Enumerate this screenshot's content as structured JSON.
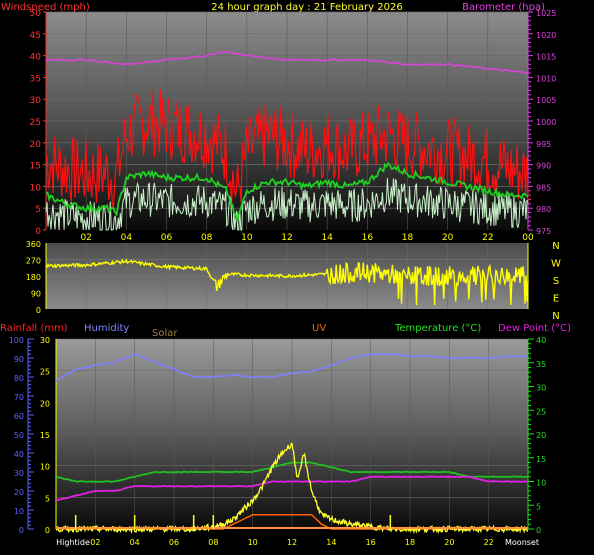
{
  "header": {
    "title": "24 hour graph day : 21 February 2026",
    "left_label": "Windspeed (mph)",
    "right_label": "Barometer (hpa)"
  },
  "colors": {
    "wind_gust": "#ff1010",
    "wind_avg": "#20d020",
    "wind_speed": "#c8f0c8",
    "barometer": "#e040e0",
    "direction": "#ffff00",
    "humidity": "#8080ff",
    "temperature": "#20c020",
    "dew_point": "#e020e0",
    "solar": "#ffff30",
    "uv": "#ff6000",
    "rainfall_label": "#ff2020",
    "uv_label": "#ff6000",
    "solar_label": "#a08040",
    "axis_left": "#ff3030",
    "axis_right": "#e040e0",
    "axis_green": "#20e020",
    "axis_blue": "#6060ff",
    "axis_yellow": "#ffff00"
  },
  "x_tick_labels": [
    "02",
    "04",
    "06",
    "08",
    "10",
    "12",
    "14",
    "16",
    "18",
    "20",
    "22",
    "00"
  ],
  "wind_panel": {
    "left_ticks": [
      "0",
      "5",
      "10",
      "15",
      "20",
      "25",
      "30",
      "35",
      "40",
      "45",
      "50"
    ],
    "right_ticks": [
      "975",
      "980",
      "985",
      "990",
      "995",
      "1000",
      "1005",
      "1010",
      "1015",
      "1020",
      "1025"
    ]
  },
  "direction_panel": {
    "left_ticks": [
      "0",
      "90",
      "180",
      "270",
      "360"
    ],
    "compass_labels": [
      "N",
      "W",
      "S",
      "E",
      "N"
    ]
  },
  "bottom_panel": {
    "legend": {
      "rainfall": "Rainfall (mm)",
      "humidity": "Humidity",
      "solar": "Solar",
      "uv": "UV",
      "temperature": "Temperature (°C)",
      "dew_point": "Dew Point (°C)"
    },
    "humidity_ticks": [
      "0",
      "10",
      "20",
      "30",
      "40",
      "50",
      "60",
      "70",
      "80",
      "90",
      "100"
    ],
    "rain_ticks": [
      "0",
      "5",
      "10",
      "15",
      "20",
      "25",
      "30"
    ],
    "temp_ticks": [
      "0",
      "5",
      "10",
      "15",
      "20",
      "25",
      "30",
      "35",
      "40"
    ],
    "x_labels": [
      "Hightide",
      "02",
      "04",
      "06",
      "08",
      "10",
      "12",
      "14",
      "16",
      "18",
      "20",
      "22",
      "Moonset"
    ]
  },
  "chart_data": [
    {
      "type": "line",
      "title": "24 hour graph day : 21 February 2026",
      "x_range_hours": [
        0,
        24
      ],
      "ylim_left": [
        0,
        50
      ],
      "ylim_right": [
        975,
        1025
      ],
      "series": [
        {
          "name": "Windspeed (mph)",
          "axis": "left",
          "hours": [
            0,
            1,
            2,
            3,
            3.5,
            4,
            5,
            6,
            7,
            8,
            9,
            9.5,
            10,
            11,
            12,
            13,
            14,
            15,
            16,
            17,
            18,
            19,
            20,
            21,
            22,
            23,
            24
          ],
          "values": [
            16,
            14,
            13,
            13,
            12,
            22,
            25,
            24,
            23,
            22,
            18,
            8,
            18,
            22,
            20,
            18,
            20,
            18,
            20,
            22,
            20,
            19,
            18,
            17,
            16,
            14,
            13
          ]
        },
        {
          "name": "wind average",
          "axis": "left",
          "hours": [
            0,
            1,
            2,
            3,
            3.5,
            4,
            5,
            6,
            7,
            8,
            9,
            9.5,
            10,
            11,
            12,
            13,
            14,
            15,
            16,
            17,
            18,
            19,
            20,
            21,
            22,
            23,
            24
          ],
          "values": [
            8,
            6,
            5,
            5,
            4,
            12,
            13,
            12,
            12,
            12,
            9,
            2,
            9,
            11,
            11,
            10,
            11,
            10,
            11,
            15,
            13,
            12,
            11,
            10,
            9,
            8,
            8
          ]
        },
        {
          "name": "Barometer (hpa)",
          "axis": "right",
          "hours": [
            0,
            2,
            4,
            6,
            8,
            9,
            10,
            12,
            14,
            16,
            18,
            20,
            22,
            24
          ],
          "values": [
            1014,
            1014,
            1013,
            1014,
            1015,
            1016,
            1015,
            1014,
            1014,
            1014,
            1013,
            1013,
            1012,
            1011
          ]
        }
      ]
    },
    {
      "type": "scatter",
      "title": "Wind direction",
      "ylim": [
        0,
        360
      ],
      "series": [
        {
          "name": "Direction",
          "hours": [
            0,
            2,
            4,
            6,
            8,
            8.5,
            9,
            10,
            12,
            14,
            16,
            18,
            20,
            22,
            24
          ],
          "values": [
            235,
            240,
            260,
            230,
            220,
            120,
            190,
            185,
            180,
            190,
            200,
            180,
            180,
            180,
            180
          ]
        }
      ]
    },
    {
      "type": "line",
      "title": "",
      "ylim_humidity": [
        0,
        100
      ],
      "ylim_rain": [
        0,
        30
      ],
      "ylim_temp": [
        0,
        40
      ],
      "series": [
        {
          "name": "Humidity",
          "axis": "humidity",
          "hours": [
            0,
            1,
            2,
            3,
            4,
            5,
            6,
            7,
            8,
            9,
            10,
            11,
            12,
            13,
            14,
            15,
            16,
            17,
            18,
            19,
            20,
            21,
            22,
            23,
            24
          ],
          "values": [
            78,
            84,
            86,
            88,
            92,
            88,
            84,
            80,
            80,
            81,
            80,
            80,
            82,
            83,
            86,
            90,
            92,
            92,
            91,
            91,
            90,
            90,
            90,
            91,
            91
          ]
        },
        {
          "name": "Temperature (°C)",
          "axis": "temp",
          "hours": [
            0,
            1,
            2,
            3,
            4,
            5,
            6,
            7,
            8,
            9,
            10,
            11,
            12,
            13,
            14,
            15,
            16,
            17,
            18,
            19,
            20,
            21,
            22,
            23,
            24
          ],
          "values": [
            11,
            10,
            10,
            10,
            11,
            12,
            12,
            12,
            12,
            12,
            12,
            13,
            14,
            14,
            13,
            12,
            12,
            12,
            12,
            12,
            12,
            11,
            11,
            11,
            11
          ]
        },
        {
          "name": "Dew Point (°C)",
          "axis": "temp",
          "hours": [
            0,
            1,
            2,
            3,
            4,
            5,
            6,
            7,
            8,
            9,
            10,
            11,
            12,
            13,
            14,
            15,
            16,
            17,
            18,
            19,
            20,
            21,
            22,
            23,
            24
          ],
          "values": [
            6,
            7,
            8,
            8,
            9,
            9,
            9,
            9,
            9,
            9,
            9,
            10,
            10,
            10,
            10,
            10,
            11,
            11,
            11,
            11,
            11,
            11,
            10,
            10,
            10
          ]
        },
        {
          "name": "Solar",
          "axis": "temp",
          "hours": [
            0,
            6,
            7,
            8,
            8.5,
            9,
            9.5,
            10,
            10.5,
            11,
            11.5,
            12,
            12.3,
            12.6,
            13,
            13.5,
            14,
            15,
            16,
            17,
            24
          ],
          "values": [
            0,
            0,
            0,
            0.5,
            1,
            2,
            4,
            6,
            9,
            13,
            16,
            18,
            10,
            16,
            8,
            3,
            2,
            1,
            0.5,
            0,
            0
          ]
        },
        {
          "name": "UV",
          "axis": "temp",
          "hours": [
            0,
            8.5,
            9,
            10,
            11,
            12,
            13,
            13.5,
            14,
            24
          ],
          "values": [
            0,
            0,
            1,
            3,
            3,
            3,
            3,
            1,
            0,
            0
          ]
        },
        {
          "name": "Rainfall (mm)",
          "axis": "rain",
          "hours": [
            0,
            24
          ],
          "values": [
            0,
            0
          ]
        }
      ],
      "event_markers_hours": [
        1,
        4,
        7,
        8,
        17
      ]
    }
  ]
}
